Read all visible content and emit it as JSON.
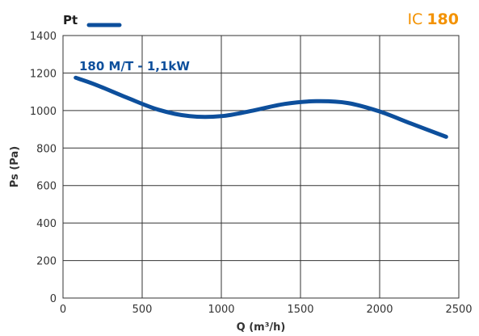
{
  "chart_data": {
    "type": "line",
    "title": "",
    "brand": {
      "prefix": "IC",
      "model": "180"
    },
    "xlabel": "Q (m³/h)",
    "ylabel": "Ps (Pa)",
    "xlim": [
      0,
      2500
    ],
    "ylim": [
      0,
      1400
    ],
    "x_ticks": [
      0,
      500,
      1000,
      1500,
      2000,
      2500
    ],
    "y_ticks": [
      0,
      200,
      400,
      600,
      800,
      1000,
      1200,
      1400
    ],
    "grid": true,
    "legend": [
      {
        "label": "Pt",
        "color": "#0d4f9c"
      }
    ],
    "series": [
      {
        "name": "Pt",
        "label": "180 M/T - 1,1kW",
        "color": "#0d4f9c",
        "x": [
          80,
          200,
          400,
          600,
          800,
          1000,
          1200,
          1400,
          1600,
          1800,
          2000,
          2200,
          2420
        ],
        "y": [
          1175,
          1140,
          1070,
          1005,
          970,
          970,
          1000,
          1035,
          1050,
          1040,
          995,
          930,
          860
        ]
      }
    ]
  },
  "colors": {
    "accent": "#f39200",
    "series": "#0d4f9c",
    "grid": "#333333"
  }
}
